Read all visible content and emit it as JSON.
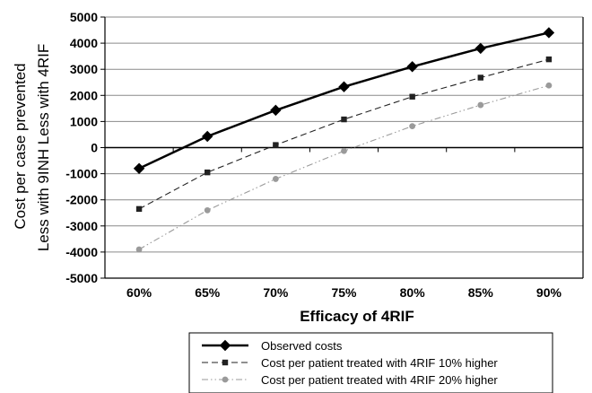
{
  "chart_data": {
    "type": "line",
    "xlabel": "Efficacy of 4RIF",
    "ylabel": {
      "line1": "Cost per case prevented",
      "top": "Less with 4RIF",
      "bottom": "Less with 9INH"
    },
    "categories": [
      "60%",
      "65%",
      "70%",
      "75%",
      "80%",
      "85%",
      "90%"
    ],
    "ylim": [
      -5000,
      5000
    ],
    "yticks": [
      5000,
      4000,
      3000,
      2000,
      1000,
      0,
      -1000,
      -2000,
      -3000,
      -4000,
      -5000
    ],
    "ytick_labels": [
      "5000",
      "4000",
      "3000",
      "2000",
      "1000",
      "0",
      "-1000",
      "-2000",
      "-3000",
      "-4000",
      "-5000"
    ],
    "grid": true,
    "legend_position": "bottom",
    "series": [
      {
        "name": "Observed costs",
        "values": [
          -800,
          430,
          1430,
          2330,
          3100,
          3800,
          4400
        ],
        "color": "#000000",
        "marker": "diamond",
        "line_style": "solid"
      },
      {
        "name": "Cost per patient treated with 4RIF 10% higher",
        "values": [
          -2350,
          -950,
          100,
          1080,
          1950,
          2680,
          3380
        ],
        "color": "#222222",
        "marker": "square",
        "line_style": "dashed"
      },
      {
        "name": "Cost per patient treated with 4RIF 20% higher",
        "values": [
          -3900,
          -2400,
          -1200,
          -130,
          820,
          1630,
          2380
        ],
        "color": "#9a9a9a",
        "marker": "circle",
        "line_style": "dash-dot-dot"
      }
    ]
  }
}
